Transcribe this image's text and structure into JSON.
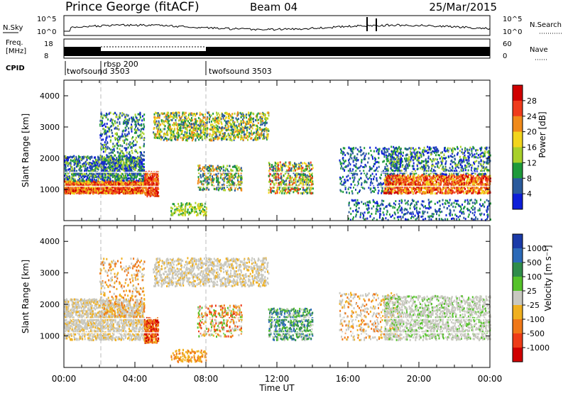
{
  "header": {
    "station": "Prince George (fitACF)",
    "beam": "Beam 04",
    "date": "25/Mar/2015"
  },
  "noise_panel": {
    "left_label": "N.Sky",
    "right_label": "N.Search",
    "left_ticks": [
      "10^5",
      "10^0"
    ],
    "right_ticks": [
      "10^5",
      "10^0"
    ]
  },
  "freq_panel": {
    "left_label_1": "Freq.",
    "left_label_2": "[MHz]",
    "right_label": "Nave",
    "left_ticks": [
      "18",
      "8"
    ],
    "right_ticks": [
      "60",
      "0"
    ]
  },
  "cpid": {
    "label": "CPID",
    "programs": [
      {
        "name": "twofsound 3503",
        "start_hour": 0
      },
      {
        "name": "rbsp 200",
        "start_hour": 2
      },
      {
        "name": "twofsound 3503",
        "start_hour": 8
      }
    ]
  },
  "chart_data": [
    {
      "type": "heatmap",
      "panel": "power",
      "ylabel": "Slant Range [km]",
      "colorbar_label": "Power [dB]",
      "x_range_hours": [
        0,
        24
      ],
      "ylim": [
        0,
        4500
      ],
      "y_ticks": [
        "1000",
        "2000",
        "3000",
        "4000"
      ],
      "colorbar_ticks": [
        "4",
        "8",
        "12",
        "16",
        "20",
        "24",
        "28"
      ],
      "colors": [
        "#0d1ed8",
        "#2a5a9c",
        "#1e9a3a",
        "#a8d02a",
        "#f2d51c",
        "#f08a1a",
        "#ef3b1c",
        "#d00000"
      ]
    },
    {
      "type": "heatmap",
      "panel": "velocity",
      "ylabel": "Slant Range [km]",
      "colorbar_label": "Velocity [m s⁻¹]",
      "xlabel": "Time UT",
      "x_range_hours": [
        0,
        24
      ],
      "ylim": [
        0,
        4500
      ],
      "y_ticks": [
        "1000",
        "2000",
        "3000",
        "4000"
      ],
      "x_ticks": [
        "00:00",
        "04:00",
        "08:00",
        "12:00",
        "16:00",
        "20:00",
        "00:00"
      ],
      "colorbar_ticks": [
        "1000",
        "500",
        "100",
        "25",
        "-25",
        "-100",
        "-500",
        "-1000"
      ],
      "colors": [
        "#1a3aa8",
        "#2c6ab8",
        "#2f8c4a",
        "#55c22a",
        "#c8c8c0",
        "#f0b020",
        "#f07818",
        "#ee3c18",
        "#d00000"
      ]
    }
  ]
}
